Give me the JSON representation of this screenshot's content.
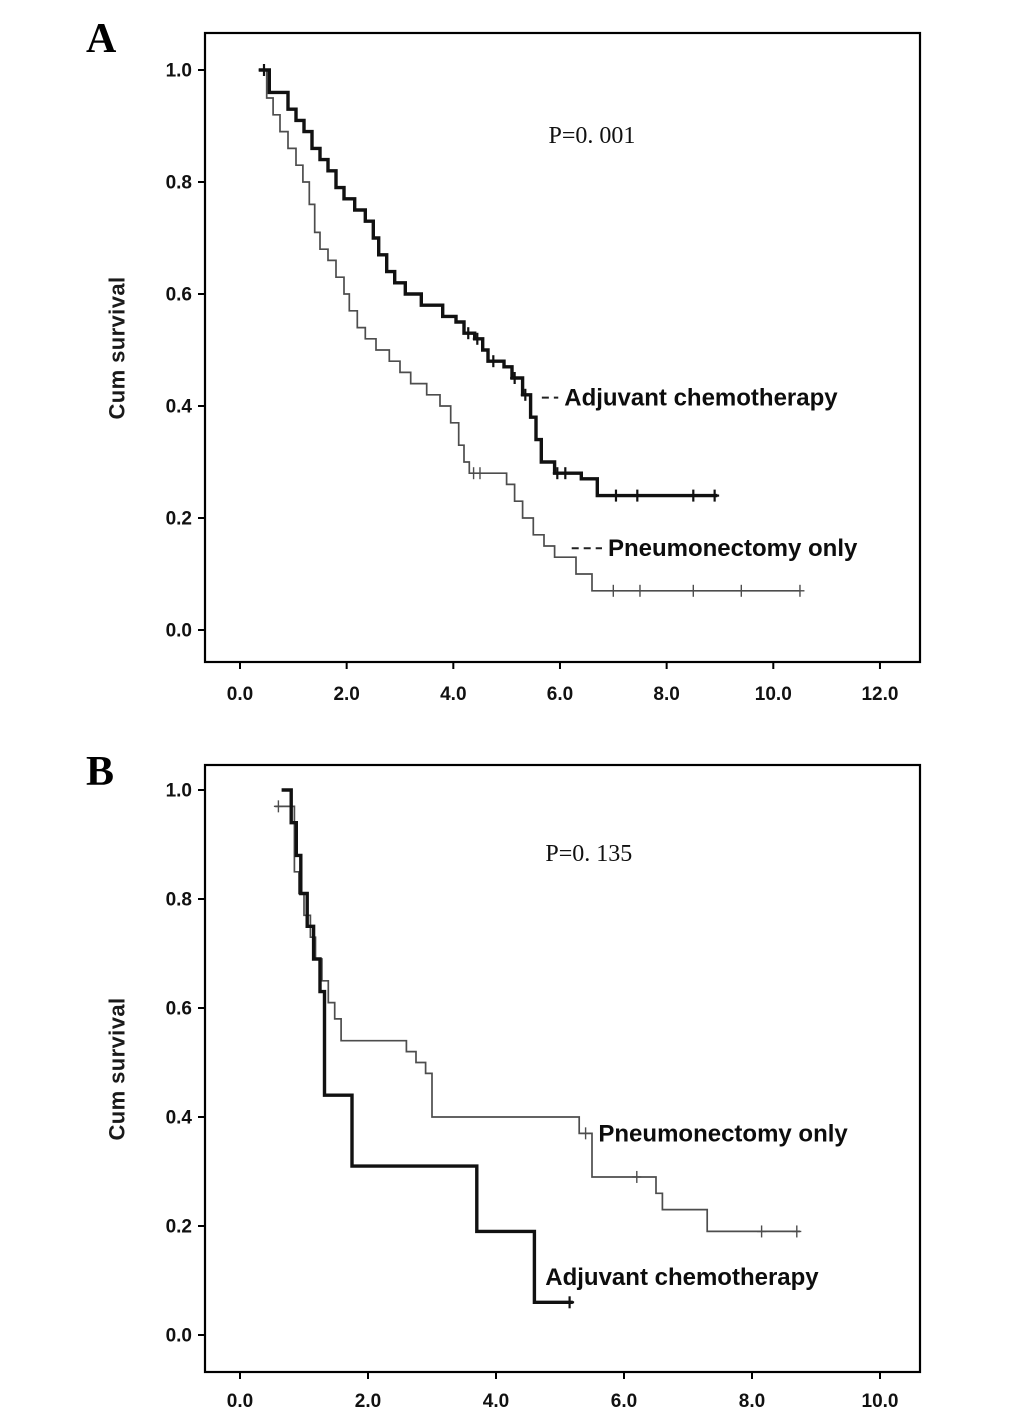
{
  "figure": {
    "background_color": "#ffffff",
    "line_colors": {
      "adjuvant_chemotherapy": "#111111",
      "pneumonectomy_only": "#4d4d4d"
    }
  },
  "chart_data": [
    {
      "panel_label": "A",
      "type": "line",
      "subtype": "kaplan_meier_survival_step",
      "title": "",
      "xlabel": "",
      "ylabel": "Cum survival",
      "xlim": [
        -0.66,
        12.75
      ],
      "ylim": [
        -0.06,
        1.07
      ],
      "x_ticks": [
        0,
        2,
        4,
        6,
        8,
        10,
        12
      ],
      "x_tick_labels": [
        "0.0",
        "2.0",
        "4.0",
        "6.0",
        "8.0",
        "10.0",
        "12.0"
      ],
      "y_ticks": [
        0,
        0.2,
        0.4,
        0.6,
        0.8,
        1.0
      ],
      "y_tick_labels": [
        "0.0",
        "0.2",
        "0.4",
        "0.6",
        "0.8",
        "1.0"
      ],
      "grid": false,
      "legend_position": "inline-labels",
      "annotation": {
        "text": "P=0. 001",
        "x": 6.6,
        "y": 0.87
      },
      "series": [
        {
          "name": "Pneumonectomy only",
          "line_weight": "thin",
          "color": "#4d4d4d",
          "label": {
            "text": "Pneumonectomy only",
            "x": 6.9,
            "y": 0.146,
            "leader_from": 6.22
          },
          "points": [
            [
              0.35,
              1.0
            ],
            [
              0.5,
              0.95
            ],
            [
              0.62,
              0.92
            ],
            [
              0.75,
              0.89
            ],
            [
              0.9,
              0.86
            ],
            [
              1.05,
              0.83
            ],
            [
              1.18,
              0.8
            ],
            [
              1.3,
              0.76
            ],
            [
              1.4,
              0.71
            ],
            [
              1.5,
              0.68
            ],
            [
              1.65,
              0.66
            ],
            [
              1.8,
              0.63
            ],
            [
              1.95,
              0.6
            ],
            [
              2.05,
              0.57
            ],
            [
              2.2,
              0.54
            ],
            [
              2.35,
              0.52
            ],
            [
              2.55,
              0.5
            ],
            [
              2.8,
              0.48
            ],
            [
              3.0,
              0.46
            ],
            [
              3.2,
              0.44
            ],
            [
              3.5,
              0.42
            ],
            [
              3.75,
              0.4
            ],
            [
              3.95,
              0.37
            ],
            [
              4.1,
              0.33
            ],
            [
              4.2,
              0.3
            ],
            [
              4.3,
              0.28
            ],
            [
              5.0,
              0.26
            ],
            [
              5.15,
              0.23
            ],
            [
              5.3,
              0.2
            ],
            [
              5.5,
              0.17
            ],
            [
              5.7,
              0.15
            ],
            [
              5.9,
              0.13
            ],
            [
              6.3,
              0.1
            ],
            [
              6.6,
              0.07
            ],
            [
              10.5,
              0.07
            ]
          ],
          "censor_marks": [
            [
              4.38,
              0.28
            ],
            [
              4.5,
              0.28
            ],
            [
              7.0,
              0.07
            ],
            [
              7.5,
              0.07
            ],
            [
              8.5,
              0.07
            ],
            [
              9.4,
              0.07
            ],
            [
              10.5,
              0.07
            ]
          ]
        },
        {
          "name": "Adjuvant chemotherapy",
          "line_weight": "thick",
          "color": "#111111",
          "label": {
            "text": "Adjuvant chemotherapy",
            "x": 6.08,
            "y": 0.415,
            "leader_from": 5.66
          },
          "points": [
            [
              0.35,
              1.0
            ],
            [
              0.55,
              0.96
            ],
            [
              0.9,
              0.93
            ],
            [
              1.05,
              0.91
            ],
            [
              1.2,
              0.89
            ],
            [
              1.35,
              0.86
            ],
            [
              1.5,
              0.84
            ],
            [
              1.65,
              0.82
            ],
            [
              1.8,
              0.79
            ],
            [
              1.95,
              0.77
            ],
            [
              2.15,
              0.75
            ],
            [
              2.35,
              0.73
            ],
            [
              2.5,
              0.7
            ],
            [
              2.6,
              0.67
            ],
            [
              2.75,
              0.64
            ],
            [
              2.9,
              0.62
            ],
            [
              3.1,
              0.6
            ],
            [
              3.4,
              0.58
            ],
            [
              3.8,
              0.56
            ],
            [
              4.05,
              0.55
            ],
            [
              4.2,
              0.53
            ],
            [
              4.4,
              0.52
            ],
            [
              4.55,
              0.5
            ],
            [
              4.65,
              0.48
            ],
            [
              4.95,
              0.47
            ],
            [
              5.1,
              0.45
            ],
            [
              5.3,
              0.42
            ],
            [
              5.45,
              0.38
            ],
            [
              5.55,
              0.34
            ],
            [
              5.65,
              0.3
            ],
            [
              5.9,
              0.28
            ],
            [
              6.4,
              0.27
            ],
            [
              6.7,
              0.24
            ],
            [
              8.95,
              0.24
            ]
          ],
          "censor_marks": [
            [
              0.45,
              1.0
            ],
            [
              4.28,
              0.53
            ],
            [
              4.45,
              0.52
            ],
            [
              4.75,
              0.48
            ],
            [
              5.15,
              0.45
            ],
            [
              5.35,
              0.42
            ],
            [
              5.95,
              0.28
            ],
            [
              6.1,
              0.28
            ],
            [
              7.05,
              0.24
            ],
            [
              7.45,
              0.24
            ],
            [
              8.5,
              0.24
            ],
            [
              8.9,
              0.24
            ]
          ]
        }
      ]
    },
    {
      "panel_label": "B",
      "type": "line",
      "subtype": "kaplan_meier_survival_step",
      "title": "",
      "xlabel": "",
      "ylabel": "Cum survival",
      "xlim": [
        -0.55,
        10.63
      ],
      "ylim": [
        -0.07,
        1.07
      ],
      "x_ticks": [
        0,
        2,
        4,
        6,
        8,
        10
      ],
      "x_tick_labels": [
        "0.0",
        "2.0",
        "4.0",
        "6.0",
        "8.0",
        "10.0"
      ],
      "y_ticks": [
        0,
        0.2,
        0.4,
        0.6,
        0.8,
        1.0
      ],
      "y_tick_labels": [
        "0.0",
        "0.2",
        "0.4",
        "0.6",
        "0.8",
        "1.0"
      ],
      "grid": false,
      "legend_position": "inline-labels",
      "annotation": {
        "text": "P=0. 135",
        "x": 5.45,
        "y": 0.87
      },
      "series": [
        {
          "name": "Pneumonectomy only",
          "line_weight": "thin",
          "color": "#4d4d4d",
          "label": {
            "text": "Pneumonectomy only",
            "x": 5.6,
            "y": 0.37,
            "leader_from": null
          },
          "points": [
            [
              0.55,
              0.97
            ],
            [
              0.85,
              0.85
            ],
            [
              0.92,
              0.81
            ],
            [
              1.0,
              0.77
            ],
            [
              1.1,
              0.73
            ],
            [
              1.18,
              0.69
            ],
            [
              1.28,
              0.65
            ],
            [
              1.38,
              0.61
            ],
            [
              1.48,
              0.58
            ],
            [
              1.58,
              0.54
            ],
            [
              2.6,
              0.52
            ],
            [
              2.75,
              0.5
            ],
            [
              2.9,
              0.48
            ],
            [
              3.0,
              0.4
            ],
            [
              5.3,
              0.37
            ],
            [
              5.5,
              0.29
            ],
            [
              6.5,
              0.26
            ],
            [
              6.6,
              0.23
            ],
            [
              7.3,
              0.19
            ],
            [
              8.75,
              0.19
            ]
          ],
          "censor_marks": [
            [
              0.6,
              0.97
            ],
            [
              5.4,
              0.37
            ],
            [
              6.2,
              0.29
            ],
            [
              8.15,
              0.19
            ],
            [
              8.7,
              0.19
            ]
          ]
        },
        {
          "name": "Adjuvant chemotherapy",
          "line_weight": "thick",
          "color": "#111111",
          "label": {
            "text": "Adjuvant chemotherapy",
            "x": 4.77,
            "y": 0.106,
            "leader_from": null
          },
          "points": [
            [
              0.65,
              1.0
            ],
            [
              0.8,
              0.94
            ],
            [
              0.88,
              0.88
            ],
            [
              0.95,
              0.81
            ],
            [
              1.05,
              0.75
            ],
            [
              1.15,
              0.69
            ],
            [
              1.25,
              0.63
            ],
            [
              1.32,
              0.44
            ],
            [
              1.75,
              0.31
            ],
            [
              3.7,
              0.19
            ],
            [
              4.6,
              0.06
            ],
            [
              5.2,
              0.06
            ]
          ],
          "censor_marks": [
            [
              5.15,
              0.06
            ]
          ]
        }
      ]
    }
  ]
}
